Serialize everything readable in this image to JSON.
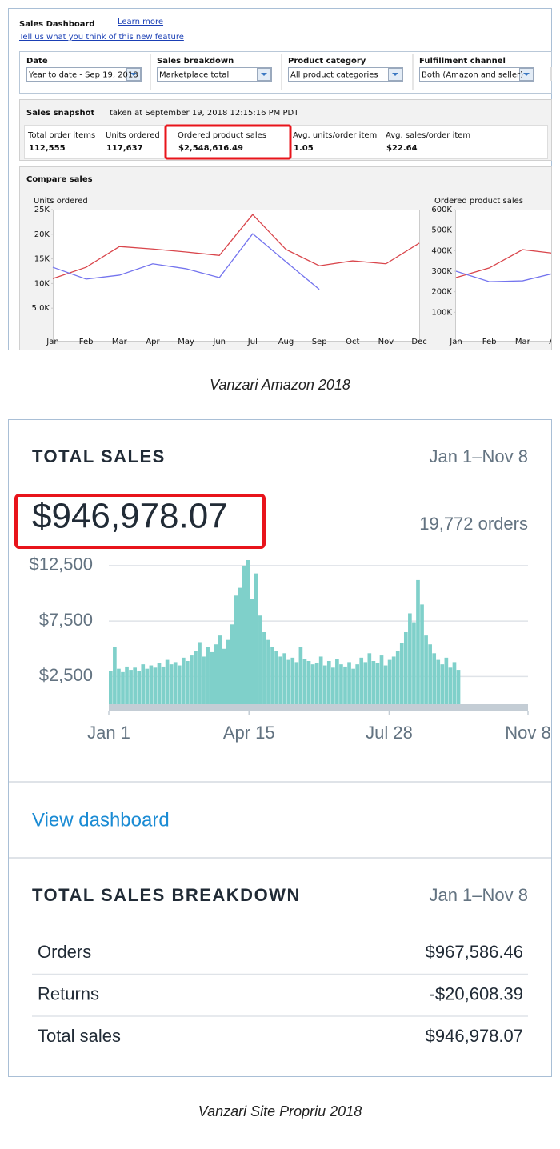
{
  "amazon": {
    "title": "Sales Dashboard",
    "learn_more": "Learn more",
    "feedback": "Tell us what you think of this new feature",
    "filters": [
      {
        "label": "Date",
        "value": "Year to date - Sep 19, 2018"
      },
      {
        "label": "Sales breakdown",
        "value": "Marketplace total"
      },
      {
        "label": "Product category",
        "value": "All product categories"
      },
      {
        "label": "Fulfillment channel",
        "value": "Both (Amazon and seller)"
      }
    ],
    "snapshot": {
      "title": "Sales snapshot",
      "taken": "taken at September 19, 2018 12:15:16 PM PDT",
      "metrics": [
        {
          "label": "Total order items",
          "value": "112,555"
        },
        {
          "label": "Units ordered",
          "value": "117,637"
        },
        {
          "label": "Ordered product sales",
          "value": "$2,548,616.49"
        },
        {
          "label": "Avg. units/order item",
          "value": "1.05"
        },
        {
          "label": "Avg. sales/order item",
          "value": "$22.64"
        }
      ]
    },
    "compare_title": "Compare sales"
  },
  "chart_data": [
    {
      "type": "line",
      "y_label": "Units ordered",
      "categories": [
        "Jan",
        "Feb",
        "Mar",
        "Apr",
        "May",
        "Jun",
        "Jul",
        "Aug",
        "Sep",
        "Oct",
        "Nov",
        "Dec"
      ],
      "ylim": [
        0,
        25000
      ],
      "yticks": [
        {
          "value": 5000,
          "label": "5.0K"
        },
        {
          "value": 10000,
          "label": "10K"
        },
        {
          "value": 15000,
          "label": "15K"
        },
        {
          "value": 20000,
          "label": "20K"
        },
        {
          "value": 25000,
          "label": "25K"
        }
      ],
      "series": [
        {
          "color": "#d9464c",
          "values": [
            11000,
            13300,
            17500,
            17000,
            16400,
            15700,
            24000,
            16900,
            13600,
            14600,
            14000,
            18200
          ]
        },
        {
          "color": "#7474ee",
          "values": [
            13300,
            10900,
            11700,
            14000,
            13000,
            11200,
            20100,
            14400,
            8800,
            null,
            null,
            null
          ]
        }
      ]
    },
    {
      "type": "line",
      "y_label": "Ordered product sales",
      "categories": [
        "Jan",
        "Feb",
        "Mar",
        "Apr"
      ],
      "ylim": [
        0,
        600000
      ],
      "yticks": [
        {
          "value": 100000,
          "label": "100K"
        },
        {
          "value": 200000,
          "label": "200K"
        },
        {
          "value": 300000,
          "label": "300K"
        },
        {
          "value": 400000,
          "label": "400K"
        },
        {
          "value": 500000,
          "label": "500K"
        },
        {
          "value": 600000,
          "label": "600K"
        }
      ],
      "series": [
        {
          "color": "#d9464c",
          "values": [
            269000,
            316000,
            405000,
            386000
          ]
        },
        {
          "color": "#7474ee",
          "values": [
            300000,
            249000,
            253000,
            292000
          ]
        }
      ]
    },
    {
      "type": "bar",
      "color": "#7fd0ca",
      "grid": true,
      "xlim": [
        "Jan 1",
        "Nov 8"
      ],
      "xticks": [
        "Jan 1",
        "Apr 15",
        "Jul 28",
        "Nov 8"
      ],
      "ylim": [
        0,
        13000
      ],
      "yticks": [
        {
          "value": 2500,
          "label": "$2,500"
        },
        {
          "value": 7500,
          "label": "$7,500"
        },
        {
          "value": 12500,
          "label": "$12,500"
        }
      ],
      "x": [
        "Jan 1",
        "Jan 4",
        "Jan 7",
        "Jan 10",
        "Jan 13",
        "Jan 16",
        "Jan 19",
        "Jan 22",
        "Jan 25",
        "Jan 28",
        "Jan 31",
        "Feb 3",
        "Feb 6",
        "Feb 9",
        "Feb 12",
        "Feb 15",
        "Feb 18",
        "Feb 21",
        "Feb 24",
        "Feb 27",
        "Mar 2",
        "Mar 5",
        "Mar 8",
        "Mar 11",
        "Mar 14",
        "Mar 17",
        "Mar 20",
        "Mar 23",
        "Mar 26",
        "Mar 29",
        "Apr 1",
        "Apr 4",
        "Apr 7",
        "Apr 10",
        "Apr 13",
        "Apr 16",
        "Apr 19",
        "Apr 22",
        "Apr 25",
        "Apr 28",
        "May 1",
        "May 4",
        "May 7",
        "May 10",
        "May 13",
        "May 16",
        "May 19",
        "May 22",
        "May 25",
        "May 28",
        "May 31",
        "Jun 3",
        "Jun 6",
        "Jun 9",
        "Jun 12",
        "Jun 15",
        "Jun 18",
        "Jun 21",
        "Jun 24",
        "Jun 27",
        "Jun 30",
        "Jul 3",
        "Jul 6",
        "Jul 9",
        "Jul 12",
        "Jul 15",
        "Jul 18",
        "Jul 21",
        "Jul 24",
        "Jul 27",
        "Jul 30",
        "Aug 2",
        "Aug 5",
        "Aug 8",
        "Aug 11",
        "Aug 14",
        "Aug 17",
        "Aug 20",
        "Aug 23",
        "Aug 26",
        "Aug 29",
        "Sep 1",
        "Sep 4",
        "Sep 7",
        "Sep 10",
        "Sep 13",
        "Sep 16"
      ],
      "values": [
        3000,
        5200,
        3200,
        2900,
        3400,
        3100,
        3300,
        3000,
        3600,
        3200,
        3500,
        3300,
        3700,
        3400,
        4000,
        3600,
        3800,
        3500,
        4200,
        3900,
        4400,
        4800,
        5600,
        4300,
        5200,
        4700,
        5400,
        6200,
        5000,
        5800,
        7200,
        9800,
        10500,
        12500,
        13000,
        9500,
        11800,
        8000,
        6500,
        5800,
        5200,
        4800,
        4300,
        4600,
        4000,
        4200,
        3800,
        5200,
        4100,
        3900,
        3600,
        3700,
        4300,
        3500,
        3900,
        3300,
        4100,
        3600,
        3400,
        3800,
        3200,
        3600,
        4200,
        3800,
        4600,
        3900,
        3700,
        4400,
        3500,
        4000,
        4300,
        4800,
        5500,
        6500,
        8200,
        7400,
        11200,
        9000,
        6200,
        5400,
        4600,
        4000,
        3600,
        4200,
        3300,
        3800,
        3100
      ]
    }
  ],
  "amazon_caption": "Vanzari Amazon 2018",
  "shop": {
    "title": "TOTAL SALES",
    "period": "Jan 1–Nov 8",
    "total": "$946,978.07",
    "orders": "19,772 orders",
    "link": "View dashboard",
    "breakdown": {
      "title": "TOTAL SALES BREAKDOWN",
      "period": "Jan 1–Nov 8",
      "rows": [
        [
          "Orders",
          "$967,586.46"
        ],
        [
          "Returns",
          "-$20,608.39"
        ],
        [
          "Total sales",
          "$946,978.07"
        ]
      ]
    }
  },
  "shop_caption": "Vanzari Site Propriu 2018"
}
